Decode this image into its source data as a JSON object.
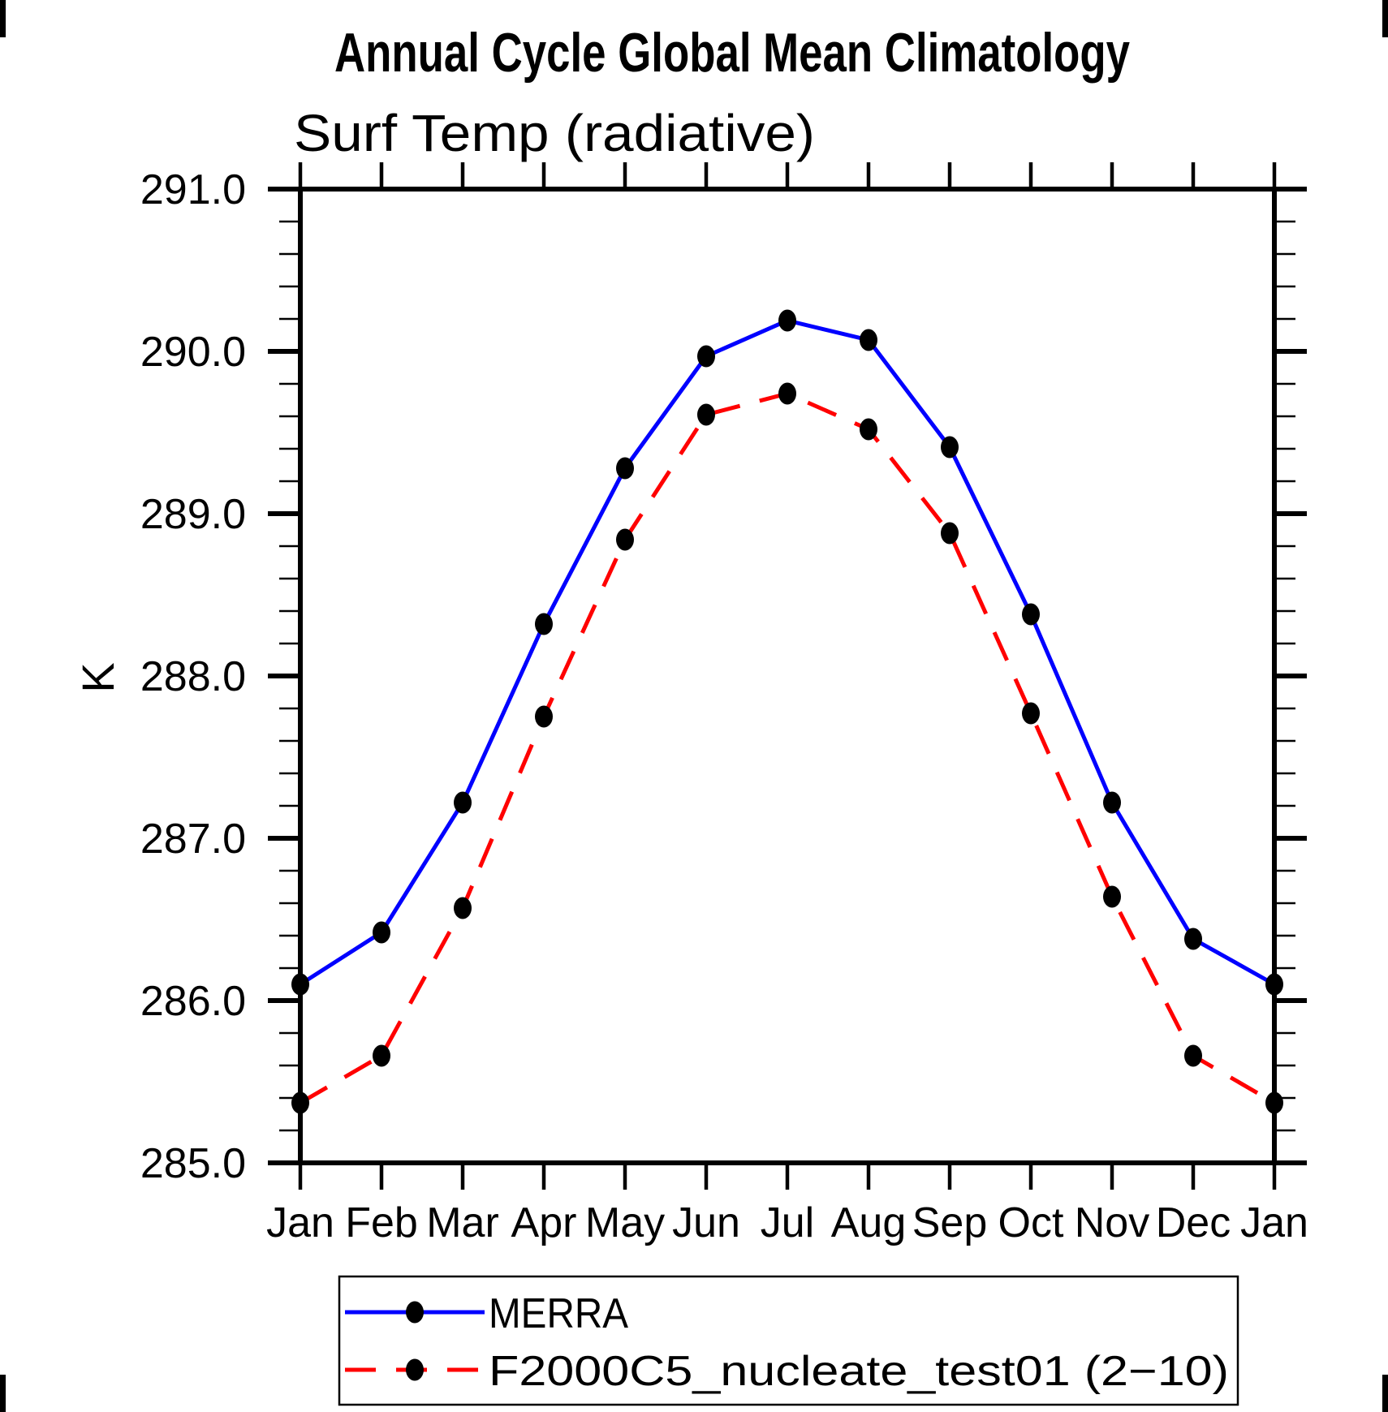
{
  "window": {
    "title": "Annual Cycle Global Mean Climatology"
  },
  "chart_data": {
    "type": "line",
    "title": "Annual Cycle Global Mean Climatology",
    "subtitle": "Surf Temp (radiative)",
    "ylabel": "K",
    "categories": [
      "Jan",
      "Feb",
      "Mar",
      "Apr",
      "May",
      "Jun",
      "Jul",
      "Aug",
      "Sep",
      "Oct",
      "Nov",
      "Dec",
      "Jan"
    ],
    "ylim": [
      285.0,
      291.0
    ],
    "ytick_step_major": 1.0,
    "ytick_step_minor": 0.2,
    "ytick_labels": [
      "285.0",
      "286.0",
      "287.0",
      "288.0",
      "289.0",
      "290.0",
      "291.0"
    ],
    "xtick_labels": [
      "Jan",
      "Feb",
      "Mar",
      "Apr",
      "May",
      "Jun",
      "Jul",
      "Aug",
      "Sep",
      "Oct",
      "Nov",
      "Dec",
      "Jan"
    ],
    "grid": false,
    "legend_position": "bottom-left",
    "series": [
      {
        "name": "MERRA",
        "color": "#0000ff",
        "line_style": "solid",
        "marker": "filled-circle",
        "marker_color": "#000000",
        "values": [
          286.1,
          286.42,
          287.22,
          288.32,
          289.28,
          289.97,
          290.19,
          290.07,
          289.41,
          288.38,
          287.22,
          286.38,
          286.1
        ]
      },
      {
        "name": "F2000C5_nucleate_test01 (2−10)",
        "color": "#ff0000",
        "line_style": "dashed",
        "marker": "filled-circle",
        "marker_color": "#000000",
        "values": [
          285.37,
          285.66,
          286.57,
          287.75,
          288.84,
          289.61,
          289.74,
          289.52,
          288.88,
          287.77,
          286.64,
          285.66,
          285.37
        ]
      }
    ]
  }
}
